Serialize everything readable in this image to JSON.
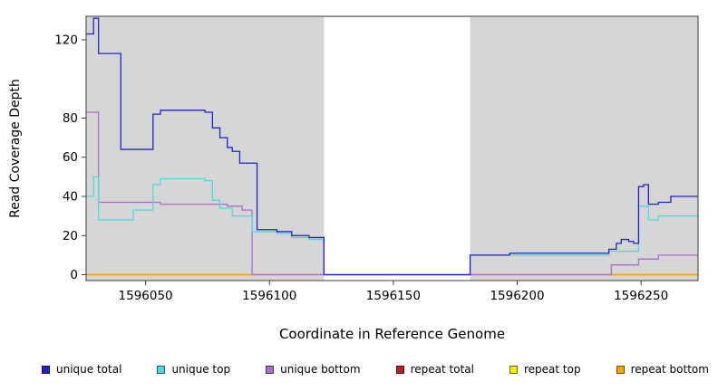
{
  "figure": {
    "background": "#ffffff",
    "plot_background": "#d6d6d6",
    "masked_region_color": "#ffffff",
    "axis_color": "#3c3c3c"
  },
  "chart_data": {
    "type": "line",
    "subtype": "step",
    "title": "",
    "xlabel": "Coordinate in Reference Genome",
    "ylabel": "Read Coverage Depth",
    "xlim": [
      1596026,
      1596273
    ],
    "ylim": [
      -3,
      132
    ],
    "xticks": [
      "1596050",
      "1596100",
      "1596150",
      "1596200",
      "1596250"
    ],
    "xtick_values": [
      1596050,
      1596100,
      1596150,
      1596200,
      1596250
    ],
    "yticks": [
      "0",
      "20",
      "40",
      "60",
      "80",
      "120"
    ],
    "ytick_values": [
      0,
      20,
      40,
      60,
      80,
      120
    ],
    "grid": false,
    "legend_position": "bottom",
    "masked_region": [
      1596122,
      1596181
    ],
    "draw_order": [
      3,
      4,
      5,
      2,
      1,
      0
    ],
    "series": [
      {
        "name": "unique total",
        "color": "#2222cc",
        "points": [
          [
            1596026,
            123
          ],
          [
            1596029,
            131
          ],
          [
            1596031,
            113
          ],
          [
            1596040,
            64
          ],
          [
            1596053,
            82
          ],
          [
            1596056,
            84
          ],
          [
            1596074,
            83
          ],
          [
            1596077,
            75
          ],
          [
            1596080,
            70
          ],
          [
            1596083,
            65
          ],
          [
            1596085,
            63
          ],
          [
            1596088,
            57
          ],
          [
            1596095,
            23
          ],
          [
            1596103,
            22
          ],
          [
            1596109,
            20
          ],
          [
            1596116,
            19
          ],
          [
            1596122,
            0
          ],
          [
            1596181,
            10
          ],
          [
            1596197,
            11
          ],
          [
            1596237,
            13
          ],
          [
            1596240,
            16
          ],
          [
            1596242,
            18
          ],
          [
            1596245,
            17
          ],
          [
            1596247,
            16
          ],
          [
            1596249,
            45
          ],
          [
            1596251,
            46
          ],
          [
            1596253,
            36
          ],
          [
            1596257,
            37
          ],
          [
            1596262,
            40
          ]
        ]
      },
      {
        "name": "unique top",
        "color": "#4fd8dc",
        "points": [
          [
            1596026,
            40
          ],
          [
            1596029,
            50
          ],
          [
            1596031,
            28
          ],
          [
            1596045,
            33
          ],
          [
            1596053,
            46
          ],
          [
            1596056,
            49
          ],
          [
            1596074,
            48
          ],
          [
            1596077,
            38
          ],
          [
            1596080,
            34
          ],
          [
            1596085,
            30
          ],
          [
            1596093,
            22
          ],
          [
            1596103,
            21
          ],
          [
            1596109,
            19
          ],
          [
            1596116,
            18
          ],
          [
            1596122,
            0
          ],
          [
            1596181,
            10
          ],
          [
            1596237,
            12
          ],
          [
            1596249,
            35
          ],
          [
            1596253,
            28
          ],
          [
            1596257,
            30
          ]
        ]
      },
      {
        "name": "unique bottom",
        "color": "#a96ecf",
        "points": [
          [
            1596026,
            83
          ],
          [
            1596031,
            37
          ],
          [
            1596056,
            36
          ],
          [
            1596083,
            35
          ],
          [
            1596089,
            33
          ],
          [
            1596093,
            0
          ],
          [
            1596238,
            5
          ],
          [
            1596249,
            8
          ],
          [
            1596257,
            10
          ]
        ]
      },
      {
        "name": "repeat total",
        "color": "#b22222",
        "points": [
          [
            1596026,
            0
          ]
        ]
      },
      {
        "name": "repeat top",
        "color": "#f0f000",
        "points": [
          [
            1596026,
            0
          ]
        ]
      },
      {
        "name": "repeat bottom",
        "color": "#ffa500",
        "points": [
          [
            1596026,
            0
          ]
        ]
      }
    ]
  }
}
